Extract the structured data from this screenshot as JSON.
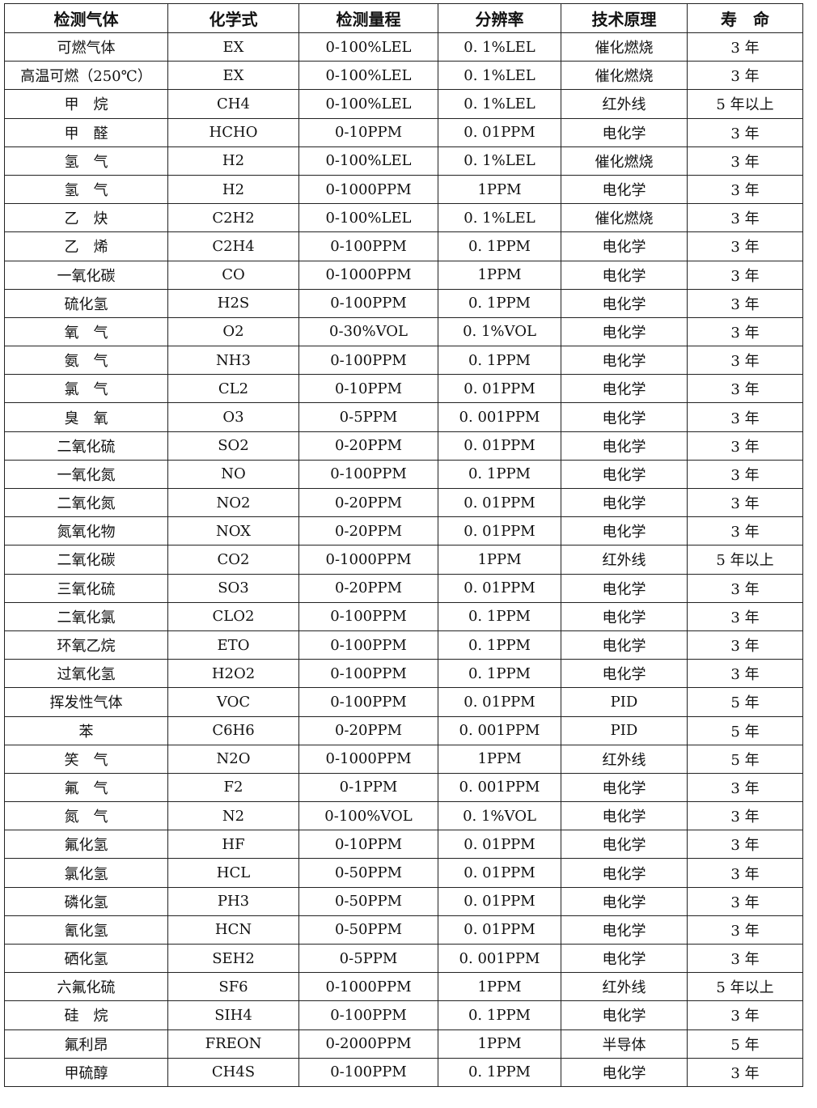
{
  "table": {
    "headers": [
      "检测气体",
      "化学式",
      "检测量程",
      "分辨率",
      "技术原理",
      "寿　命"
    ],
    "rows": [
      [
        "可燃气体",
        "EX",
        "0-100%LEL",
        "0. 1%LEL",
        "催化燃烧",
        "3 年"
      ],
      [
        "高温可燃（250℃）",
        "EX",
        "0-100%LEL",
        "0. 1%LEL",
        "催化燃烧",
        "3 年"
      ],
      [
        "甲　烷",
        "CH4",
        "0-100%LEL",
        "0. 1%LEL",
        "红外线",
        "5 年以上"
      ],
      [
        "甲　醛",
        "HCHO",
        "0-10PPM",
        "0. 01PPM",
        "电化学",
        "3 年"
      ],
      [
        "氢　气",
        "H2",
        "0-100%LEL",
        "0. 1%LEL",
        "催化燃烧",
        "3 年"
      ],
      [
        "氢　气",
        "H2",
        "0-1000PPM",
        "1PPM",
        "电化学",
        "3 年"
      ],
      [
        "乙　炔",
        "C2H2",
        "0-100%LEL",
        "0. 1%LEL",
        "催化燃烧",
        "3 年"
      ],
      [
        "乙　烯",
        "C2H4",
        "0-100PPM",
        "0. 1PPM",
        "电化学",
        "3 年"
      ],
      [
        "一氧化碳",
        "CO",
        "0-1000PPM",
        "1PPM",
        "电化学",
        "3 年"
      ],
      [
        "硫化氢",
        "H2S",
        "0-100PPM",
        "0. 1PPM",
        "电化学",
        "3 年"
      ],
      [
        "氧　气",
        "O2",
        "0-30%VOL",
        "0. 1%VOL",
        "电化学",
        "3 年"
      ],
      [
        "氨　气",
        "NH3",
        "0-100PPM",
        "0. 1PPM",
        "电化学",
        "3 年"
      ],
      [
        "氯　气",
        "CL2",
        "0-10PPM",
        "0. 01PPM",
        "电化学",
        "3 年"
      ],
      [
        "臭　氧",
        "O3",
        "0-5PPM",
        "0. 001PPM",
        "电化学",
        "3 年"
      ],
      [
        "二氧化硫",
        "SO2",
        "0-20PPM",
        "0. 01PPM",
        "电化学",
        "3 年"
      ],
      [
        "一氧化氮",
        "NO",
        "0-100PPM",
        "0. 1PPM",
        "电化学",
        "3 年"
      ],
      [
        "二氧化氮",
        "NO2",
        "0-20PPM",
        "0. 01PPM",
        "电化学",
        "3 年"
      ],
      [
        "氮氧化物",
        "NOX",
        "0-20PPM",
        "0. 01PPM",
        "电化学",
        "3 年"
      ],
      [
        "二氧化碳",
        "CO2",
        "0-1000PPM",
        "1PPM",
        "红外线",
        "5 年以上"
      ],
      [
        "三氧化硫",
        "SO3",
        "0-20PPM",
        "0. 01PPM",
        "电化学",
        "3 年"
      ],
      [
        "二氧化氯",
        "CLO2",
        "0-100PPM",
        "0. 1PPM",
        "电化学",
        "3 年"
      ],
      [
        "环氧乙烷",
        "ETO",
        "0-100PPM",
        "0. 1PPM",
        "电化学",
        "3 年"
      ],
      [
        "过氧化氢",
        "H2O2",
        "0-100PPM",
        "0. 1PPM",
        "电化学",
        "3 年"
      ],
      [
        "挥发性气体",
        "VOC",
        "0-100PPM",
        "0. 01PPM",
        "PID",
        "5 年"
      ],
      [
        "苯",
        "C6H6",
        "0-20PPM",
        "0. 001PPM",
        "PID",
        "5 年"
      ],
      [
        "笑　气",
        "N2O",
        "0-1000PPM",
        "1PPM",
        "红外线",
        "5 年"
      ],
      [
        "氟　气",
        "F2",
        "0-1PPM",
        "0. 001PPM",
        "电化学",
        "3 年"
      ],
      [
        "氮　气",
        "N2",
        "0-100%VOL",
        "0. 1%VOL",
        "电化学",
        "3 年"
      ],
      [
        "氟化氢",
        "HF",
        "0-10PPM",
        "0. 01PPM",
        "电化学",
        "3 年"
      ],
      [
        "氯化氢",
        "HCL",
        "0-50PPM",
        "0. 01PPM",
        "电化学",
        "3 年"
      ],
      [
        "磷化氢",
        "PH3",
        "0-50PPM",
        "0. 01PPM",
        "电化学",
        "3 年"
      ],
      [
        "氰化氢",
        "HCN",
        "0-50PPM",
        "0. 01PPM",
        "电化学",
        "3 年"
      ],
      [
        "硒化氢",
        "SEH2",
        "0-5PPM",
        "0. 001PPM",
        "电化学",
        "3 年"
      ],
      [
        "六氟化硫",
        "SF6",
        "0-1000PPM",
        "1PPM",
        "红外线",
        "5 年以上"
      ],
      [
        "硅　烷",
        "SIH4",
        "0-100PPM",
        "0. 1PPM",
        "电化学",
        "3 年"
      ],
      [
        "氟利昂",
        "FREON",
        "0-2000PPM",
        "1PPM",
        "半导体",
        "5 年"
      ],
      [
        "甲硫醇",
        "CH4S",
        "0-100PPM",
        "0. 1PPM",
        "电化学",
        "3 年"
      ]
    ]
  }
}
